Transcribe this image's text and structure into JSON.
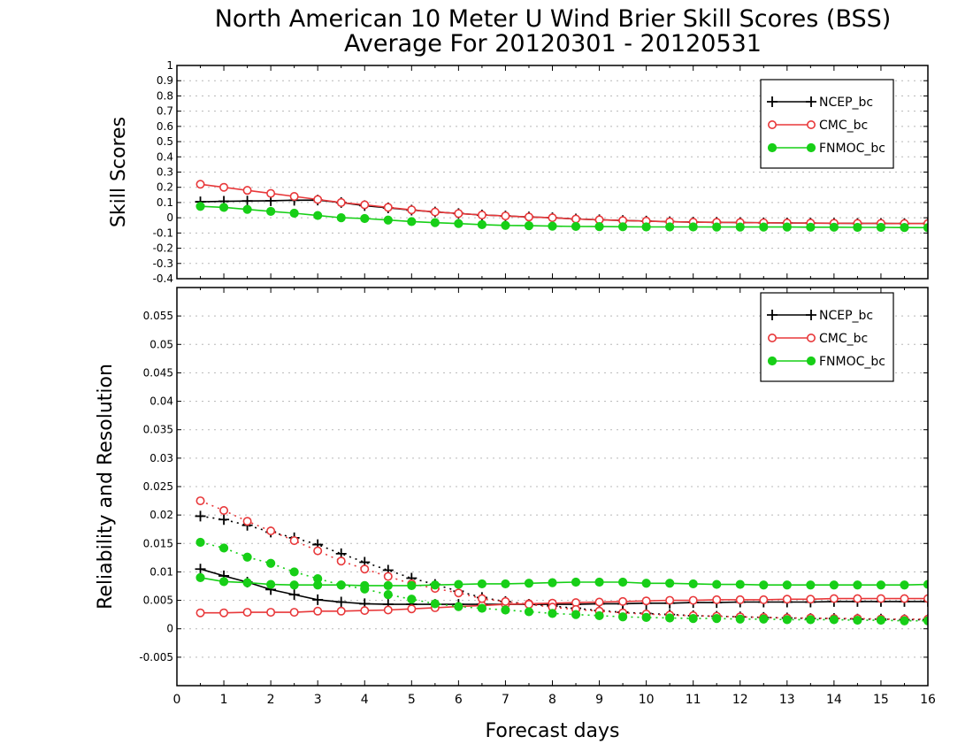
{
  "chart_title": {
    "line1": "North American 10 Meter U Wind Brier Skill Scores (BSS)",
    "line2": "Average For 20120301 - 20120531"
  },
  "colors": {
    "NCEP_bc": "#000000",
    "CMC_bc": "#e8383a",
    "FNMOC_bc": "#17cf17"
  },
  "chart_data": [
    {
      "type": "line",
      "ylabel": "Skill Scores",
      "xlabel": "",
      "xlim": [
        0,
        16
      ],
      "ylim": [
        -0.4,
        1
      ],
      "yticks": [
        "-0.4",
        "-0.3",
        "-0.2",
        "-0.1",
        "0",
        "0.1",
        "0.2",
        "0.3",
        "0.4",
        "0.5",
        "0.6",
        "0.7",
        "0.8",
        "0.9",
        "1"
      ],
      "grid": true,
      "legend_position": "top-right",
      "x": [
        0.5,
        1,
        1.5,
        2,
        2.5,
        3,
        3.5,
        4,
        4.5,
        5,
        5.5,
        6,
        6.5,
        7,
        7.5,
        8,
        8.5,
        9,
        9.5,
        10,
        10.5,
        11,
        11.5,
        12,
        12.5,
        13,
        13.5,
        14,
        14.5,
        15,
        15.5,
        16
      ],
      "series": [
        {
          "name": "NCEP_bc",
          "marker": "plus",
          "style": "solid",
          "values": [
            0.105,
            0.108,
            0.11,
            0.112,
            0.115,
            0.116,
            0.1,
            0.08,
            0.065,
            0.05,
            0.038,
            0.028,
            0.018,
            0.012,
            0.005,
            0.0,
            -0.008,
            -0.013,
            -0.018,
            -0.022,
            -0.026,
            -0.029,
            -0.03,
            -0.031,
            -0.033,
            -0.034,
            -0.035,
            -0.036,
            -0.037,
            -0.037,
            -0.038,
            -0.038
          ]
        },
        {
          "name": "CMC_bc",
          "marker": "circle-open",
          "style": "solid",
          "values": [
            0.22,
            0.2,
            0.18,
            0.16,
            0.14,
            0.12,
            0.1,
            0.085,
            0.068,
            0.052,
            0.038,
            0.028,
            0.018,
            0.012,
            0.005,
            0.0,
            -0.008,
            -0.013,
            -0.018,
            -0.022,
            -0.026,
            -0.029,
            -0.03,
            -0.031,
            -0.033,
            -0.034,
            -0.035,
            -0.036,
            -0.037,
            -0.037,
            -0.038,
            -0.038
          ]
        },
        {
          "name": "FNMOC_bc",
          "marker": "circle-filled",
          "style": "solid",
          "values": [
            0.075,
            0.068,
            0.055,
            0.042,
            0.03,
            0.015,
            0.0,
            -0.005,
            -0.015,
            -0.025,
            -0.032,
            -0.038,
            -0.045,
            -0.05,
            -0.052,
            -0.055,
            -0.057,
            -0.058,
            -0.059,
            -0.06,
            -0.06,
            -0.06,
            -0.061,
            -0.061,
            -0.061,
            -0.061,
            -0.062,
            -0.062,
            -0.063,
            -0.063,
            -0.064,
            -0.065
          ]
        }
      ]
    },
    {
      "type": "line",
      "ylabel": "Reliability and Resolution",
      "xlabel": "Forecast days",
      "xlim": [
        0,
        16
      ],
      "ylim": [
        -0.01,
        0.06
      ],
      "yticks": [
        "-0.005",
        "0",
        "0.005",
        "0.01",
        "0.015",
        "0.02",
        "0.025",
        "0.03",
        "0.035",
        "0.04",
        "0.045",
        "0.05",
        "0.055"
      ],
      "xticks": [
        "0",
        "1",
        "2",
        "3",
        "4",
        "5",
        "6",
        "7",
        "8",
        "9",
        "10",
        "11",
        "12",
        "13",
        "14",
        "15",
        "16"
      ],
      "grid": true,
      "legend_position": "top-right",
      "x": [
        0.5,
        1,
        1.5,
        2,
        2.5,
        3,
        3.5,
        4,
        4.5,
        5,
        5.5,
        6,
        6.5,
        7,
        7.5,
        8,
        8.5,
        9,
        9.5,
        10,
        10.5,
        11,
        11.5,
        12,
        12.5,
        13,
        13.5,
        14,
        14.5,
        15,
        15.5,
        16
      ],
      "series": [
        {
          "name": "NCEP_bc",
          "measure": "reliability",
          "marker": "plus",
          "style": "solid",
          "values": [
            0.0105,
            0.0093,
            0.0082,
            0.0069,
            0.006,
            0.0051,
            0.0047,
            0.0044,
            0.0043,
            0.0043,
            0.0043,
            0.0043,
            0.0043,
            0.0043,
            0.0043,
            0.0043,
            0.0043,
            0.0044,
            0.0044,
            0.0045,
            0.0045,
            0.0046,
            0.0046,
            0.0047,
            0.0047,
            0.0047,
            0.0047,
            0.0048,
            0.0048,
            0.0048,
            0.0048,
            0.0048
          ]
        },
        {
          "name": "NCEP_bc",
          "measure": "resolution",
          "marker": "plus",
          "style": "dotted",
          "values": [
            0.0198,
            0.0192,
            0.0182,
            0.017,
            0.016,
            0.0148,
            0.0132,
            0.0117,
            0.0103,
            0.0089,
            0.0078,
            0.0066,
            0.0055,
            0.0048,
            0.0043,
            0.004,
            0.0036,
            0.0032,
            0.0029,
            0.0027,
            0.0025,
            0.0023,
            0.0022,
            0.0021,
            0.002,
            0.0019,
            0.0018,
            0.0018,
            0.0017,
            0.0017,
            0.0016,
            0.0016
          ]
        },
        {
          "name": "CMC_bc",
          "measure": "reliability",
          "marker": "circle-open",
          "style": "solid",
          "values": [
            0.0028,
            0.0028,
            0.0029,
            0.0029,
            0.0029,
            0.0031,
            0.0031,
            0.0032,
            0.0033,
            0.0035,
            0.0037,
            0.0039,
            0.0041,
            0.0043,
            0.0044,
            0.0045,
            0.0046,
            0.0047,
            0.0048,
            0.0049,
            0.005,
            0.005,
            0.0051,
            0.0051,
            0.0051,
            0.0052,
            0.0052,
            0.0053,
            0.0053,
            0.0053,
            0.0053,
            0.0053
          ]
        },
        {
          "name": "CMC_bc",
          "measure": "resolution",
          "marker": "circle-open",
          "style": "dotted",
          "values": [
            0.0225,
            0.0208,
            0.0189,
            0.0172,
            0.0155,
            0.0137,
            0.0119,
            0.0105,
            0.0092,
            0.0079,
            0.0071,
            0.0063,
            0.0053,
            0.0048,
            0.0043,
            0.0038,
            0.0034,
            0.0031,
            0.0028,
            0.0026,
            0.0024,
            0.0023,
            0.0022,
            0.0021,
            0.002,
            0.0019,
            0.0019,
            0.0018,
            0.0018,
            0.0017,
            0.0017,
            0.0017
          ]
        },
        {
          "name": "FNMOC_bc",
          "measure": "reliability",
          "marker": "circle-filled",
          "style": "solid",
          "values": [
            0.009,
            0.0083,
            0.0081,
            0.0078,
            0.0077,
            0.0077,
            0.0077,
            0.0076,
            0.0076,
            0.0076,
            0.0077,
            0.0078,
            0.0079,
            0.0079,
            0.008,
            0.0081,
            0.0082,
            0.0082,
            0.0082,
            0.008,
            0.008,
            0.0079,
            0.0078,
            0.0078,
            0.0077,
            0.0077,
            0.0077,
            0.0077,
            0.0077,
            0.0077,
            0.0077,
            0.0078
          ]
        },
        {
          "name": "FNMOC_bc",
          "measure": "resolution",
          "marker": "circle-filled",
          "style": "dotted",
          "values": [
            0.0152,
            0.0142,
            0.0126,
            0.0115,
            0.01,
            0.0088,
            0.0077,
            0.007,
            0.006,
            0.0052,
            0.0044,
            0.0039,
            0.0036,
            0.0033,
            0.003,
            0.0027,
            0.0025,
            0.0023,
            0.0021,
            0.002,
            0.0019,
            0.0018,
            0.0018,
            0.0017,
            0.0017,
            0.0016,
            0.0016,
            0.0016,
            0.0015,
            0.0015,
            0.0014,
            0.0014
          ]
        }
      ]
    }
  ]
}
